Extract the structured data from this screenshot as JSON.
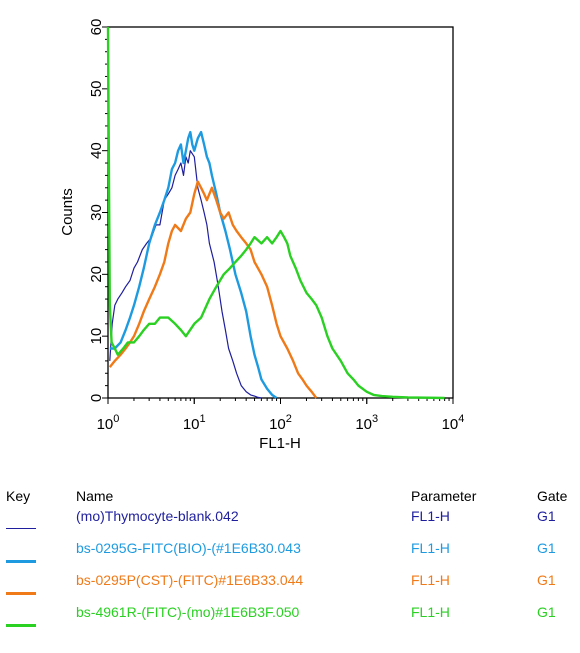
{
  "chart_data": {
    "type": "line",
    "xlabel": "FL1-H",
    "ylabel": "Counts",
    "xscale": "log",
    "xlim": [
      1,
      10000
    ],
    "ylim": [
      0,
      60
    ],
    "x_ticks": [
      {
        "base": "10",
        "exp": "0",
        "value": 1
      },
      {
        "base": "10",
        "exp": "1",
        "value": 10
      },
      {
        "base": "10",
        "exp": "2",
        "value": 100
      },
      {
        "base": "10",
        "exp": "3",
        "value": 1000
      },
      {
        "base": "10",
        "exp": "4",
        "value": 10000
      }
    ],
    "y_ticks": [
      "0",
      "10",
      "20",
      "30",
      "40",
      "50",
      "60"
    ],
    "series": [
      {
        "name": "(mo)Thymocyte-blank.042",
        "color": "#1f1f9e",
        "x": [
          1.05,
          1.12,
          1.2,
          1.3,
          1.45,
          1.6,
          1.8,
          2.0,
          2.2,
          2.5,
          2.8,
          3.2,
          3.6,
          4.0,
          4.5,
          5.0,
          5.5,
          6.0,
          6.5,
          7.0,
          7.5,
          8.0,
          8.5,
          9.0,
          10.0,
          11.0,
          12.0,
          13.0,
          14.0,
          15.0,
          17.0,
          19.0,
          21.0,
          23.0,
          25.0,
          28.0,
          31.0,
          35.0,
          40.0,
          45.0,
          50.0,
          55.0,
          60.0
        ],
        "y": [
          6,
          12,
          15,
          16,
          17,
          18,
          19,
          21,
          22,
          24,
          25,
          26,
          28,
          28,
          32,
          33,
          34,
          36,
          37,
          38,
          36,
          39,
          38,
          40,
          39,
          34,
          32,
          30,
          28,
          25,
          22,
          18,
          14,
          11,
          8,
          6,
          4,
          2,
          1,
          0.5,
          0.3,
          0.1,
          0
        ]
      },
      {
        "name": "bs-0295G-FITC(BIO)-(#1E6B30.043",
        "color": "#1e9be0",
        "x": [
          1.05,
          1.2,
          1.4,
          1.6,
          1.8,
          2.0,
          2.3,
          2.6,
          3.0,
          3.5,
          4.0,
          4.5,
          5.0,
          5.5,
          6.0,
          6.5,
          7.0,
          7.5,
          8.0,
          8.5,
          9.0,
          9.5,
          10.0,
          11.0,
          12.0,
          13.0,
          14.0,
          15.0,
          16.0,
          18.0,
          20.0,
          23.0,
          26.0,
          30.0,
          35.0,
          40.0,
          45.0,
          50.0,
          55.0,
          60.0,
          70.0,
          80.0,
          90.0
        ],
        "y": [
          8,
          8,
          9,
          11,
          13,
          15,
          18,
          21,
          25,
          28,
          30,
          32,
          34,
          37,
          38,
          40,
          41,
          38,
          40,
          42,
          43,
          41,
          40,
          42,
          43,
          41,
          39,
          38,
          36,
          33,
          30,
          27,
          24,
          20,
          17,
          14,
          10,
          7,
          5,
          3,
          1.5,
          0.5,
          0
        ]
      },
      {
        "name": "bs-0295P(CST)-(FITC)#1E6B33.044",
        "color": "#f07a18",
        "x": [
          1.05,
          1.2,
          1.4,
          1.6,
          1.8,
          2.0,
          2.3,
          2.6,
          3.0,
          3.5,
          4.0,
          4.5,
          5.0,
          5.5,
          6.0,
          7.0,
          8.0,
          9.0,
          10.0,
          11.0,
          12.0,
          13.0,
          14.0,
          15.0,
          16.0,
          18.0,
          20.0,
          22.0,
          25.0,
          28.0,
          31.0,
          35.0,
          40.0,
          45.0,
          50.0,
          60.0,
          70.0,
          80.0,
          90.0,
          100.0,
          120.0,
          140.0,
          160.0,
          180.0,
          200.0,
          230.0,
          260.0
        ],
        "y": [
          5,
          6,
          7,
          8,
          9,
          10,
          12,
          14,
          16,
          18,
          20,
          22,
          25,
          27,
          28,
          27,
          29,
          30,
          33,
          35,
          34,
          33,
          32,
          33,
          34,
          32,
          30,
          29,
          30,
          28,
          27,
          26,
          25,
          24,
          22,
          20,
          18,
          15,
          12,
          10,
          8,
          6,
          4,
          3,
          2,
          1,
          0
        ]
      },
      {
        "name": "bs-4961R-(FITC)-(mo)#1E6B3F.050",
        "color": "#2ad022",
        "x": [
          1.0,
          1.05,
          1.1,
          1.2,
          1.3,
          1.5,
          1.7,
          2.0,
          2.3,
          2.6,
          3.0,
          3.5,
          4.0,
          5.0,
          6.0,
          7.0,
          8.0,
          10.0,
          12.0,
          15.0,
          18.0,
          22.0,
          26.0,
          30.0,
          35.0,
          40.0,
          45.0,
          50.0,
          60.0,
          70.0,
          80.0,
          90.0,
          100.0,
          110.0,
          120.0,
          130.0,
          150.0,
          170.0,
          200.0,
          230.0,
          260.0,
          300.0,
          350.0,
          400.0,
          500.0,
          600.0,
          700.0,
          800.0,
          1000.0,
          1200.0,
          1500.0,
          2000.0,
          3000.0,
          5000.0,
          8000.0
        ],
        "y": [
          60,
          15,
          9,
          8,
          7,
          8,
          9,
          9,
          10,
          11,
          12,
          12,
          13,
          13,
          12,
          11,
          10,
          12,
          13,
          16,
          18,
          20,
          21,
          22,
          23,
          24,
          25,
          26,
          25,
          26,
          25,
          26,
          27,
          26,
          25,
          23,
          21,
          19,
          17,
          16,
          15,
          13,
          10,
          8,
          6,
          4,
          3,
          2,
          1,
          0.5,
          0.3,
          0.2,
          0.1,
          0.05,
          0
        ]
      }
    ]
  },
  "legend": {
    "headers": {
      "key": "Key",
      "name": "Name",
      "parameter": "Parameter",
      "gate": "Gate"
    },
    "rows": [
      {
        "name": "(mo)Thymocyte-blank.042",
        "parameter": "FL1-H",
        "gate": "G1",
        "color": "#1f1f9e"
      },
      {
        "name": "bs-0295G-FITC(BIO)-(#1E6B30.043",
        "parameter": "FL1-H",
        "gate": "G1",
        "color": "#1e9be0"
      },
      {
        "name": "bs-0295P(CST)-(FITC)#1E6B33.044",
        "parameter": "FL1-H",
        "gate": "G1",
        "color": "#f07a18"
      },
      {
        "name": "bs-4961R-(FITC)-(mo)#1E6B3F.050",
        "parameter": "FL1-H",
        "gate": "G1",
        "color": "#2ad022"
      }
    ]
  }
}
